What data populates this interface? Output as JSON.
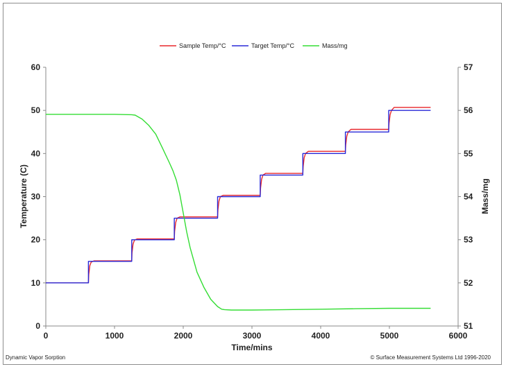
{
  "chart_data": {
    "type": "line",
    "title": "",
    "xlabel": "Time/mins",
    "ylabel_left": "Temperature (C)",
    "ylabel_right": "Mass/mg",
    "xlim": [
      0,
      6000
    ],
    "ylim_left": [
      0,
      60
    ],
    "ylim_right": [
      51,
      57
    ],
    "x_ticks": [
      "0",
      "1000",
      "2000",
      "3000",
      "4000",
      "5000",
      "6000"
    ],
    "y_left_ticks": [
      "0",
      "10",
      "20",
      "30",
      "40",
      "50",
      "60"
    ],
    "y_right_ticks": [
      "51",
      "52",
      "53",
      "54",
      "55",
      "56",
      "57"
    ],
    "grid": false,
    "legend_position": "top-center",
    "series": [
      {
        "name": "Sample Temp/°C",
        "axis": "left",
        "color": "#e8262a",
        "x": [
          0,
          620,
          625,
          640,
          660,
          700,
          1250,
          1255,
          1270,
          1290,
          1330,
          1870,
          1875,
          1890,
          1910,
          1950,
          2500,
          2505,
          2520,
          2540,
          2580,
          3120,
          3125,
          3140,
          3160,
          3200,
          3740,
          3745,
          3760,
          3780,
          3820,
          4360,
          4365,
          4380,
          4400,
          4440,
          4990,
          4995,
          5010,
          5030,
          5070,
          5600
        ],
        "y": [
          10,
          10,
          12,
          14,
          14.8,
          15.1,
          15.1,
          17,
          19,
          19.9,
          20.2,
          20.2,
          22,
          24,
          25,
          25.3,
          25.3,
          27,
          29,
          30,
          30.3,
          30.3,
          32,
          34,
          35,
          35.4,
          35.4,
          37,
          39,
          40,
          40.5,
          40.5,
          42,
          44,
          45,
          45.6,
          45.6,
          47,
          49,
          50,
          50.7,
          50.7
        ]
      },
      {
        "name": "Target Temp/°C",
        "axis": "left",
        "color": "#2828d8",
        "x": [
          0,
          620,
          620,
          1250,
          1250,
          1870,
          1870,
          2500,
          2500,
          3120,
          3120,
          3740,
          3740,
          4360,
          4360,
          4990,
          4990,
          5600
        ],
        "y": [
          10,
          10,
          15,
          15,
          20,
          20,
          25,
          25,
          30,
          30,
          35,
          35,
          40,
          40,
          45,
          45,
          50,
          50
        ]
      },
      {
        "name": "Mass/mg",
        "axis": "right",
        "color": "#33dd33",
        "x": [
          0,
          500,
          1000,
          1250,
          1300,
          1400,
          1500,
          1600,
          1700,
          1800,
          1850,
          1900,
          1950,
          2000,
          2050,
          2100,
          2200,
          2300,
          2400,
          2500,
          2560,
          2600,
          2700,
          3000,
          3500,
          4000,
          4500,
          5000,
          5600
        ],
        "y": [
          55.91,
          55.91,
          55.91,
          55.9,
          55.89,
          55.8,
          55.65,
          55.45,
          55.12,
          54.78,
          54.6,
          54.38,
          54.05,
          53.62,
          53.18,
          52.82,
          52.25,
          51.9,
          51.62,
          51.45,
          51.39,
          51.38,
          51.37,
          51.37,
          51.38,
          51.39,
          51.4,
          51.41,
          51.41
        ]
      }
    ]
  },
  "footer": {
    "left": "Dynamic Vapor Sorption",
    "right": "© Surface Measurement Systems Ltd 1996-2020"
  }
}
